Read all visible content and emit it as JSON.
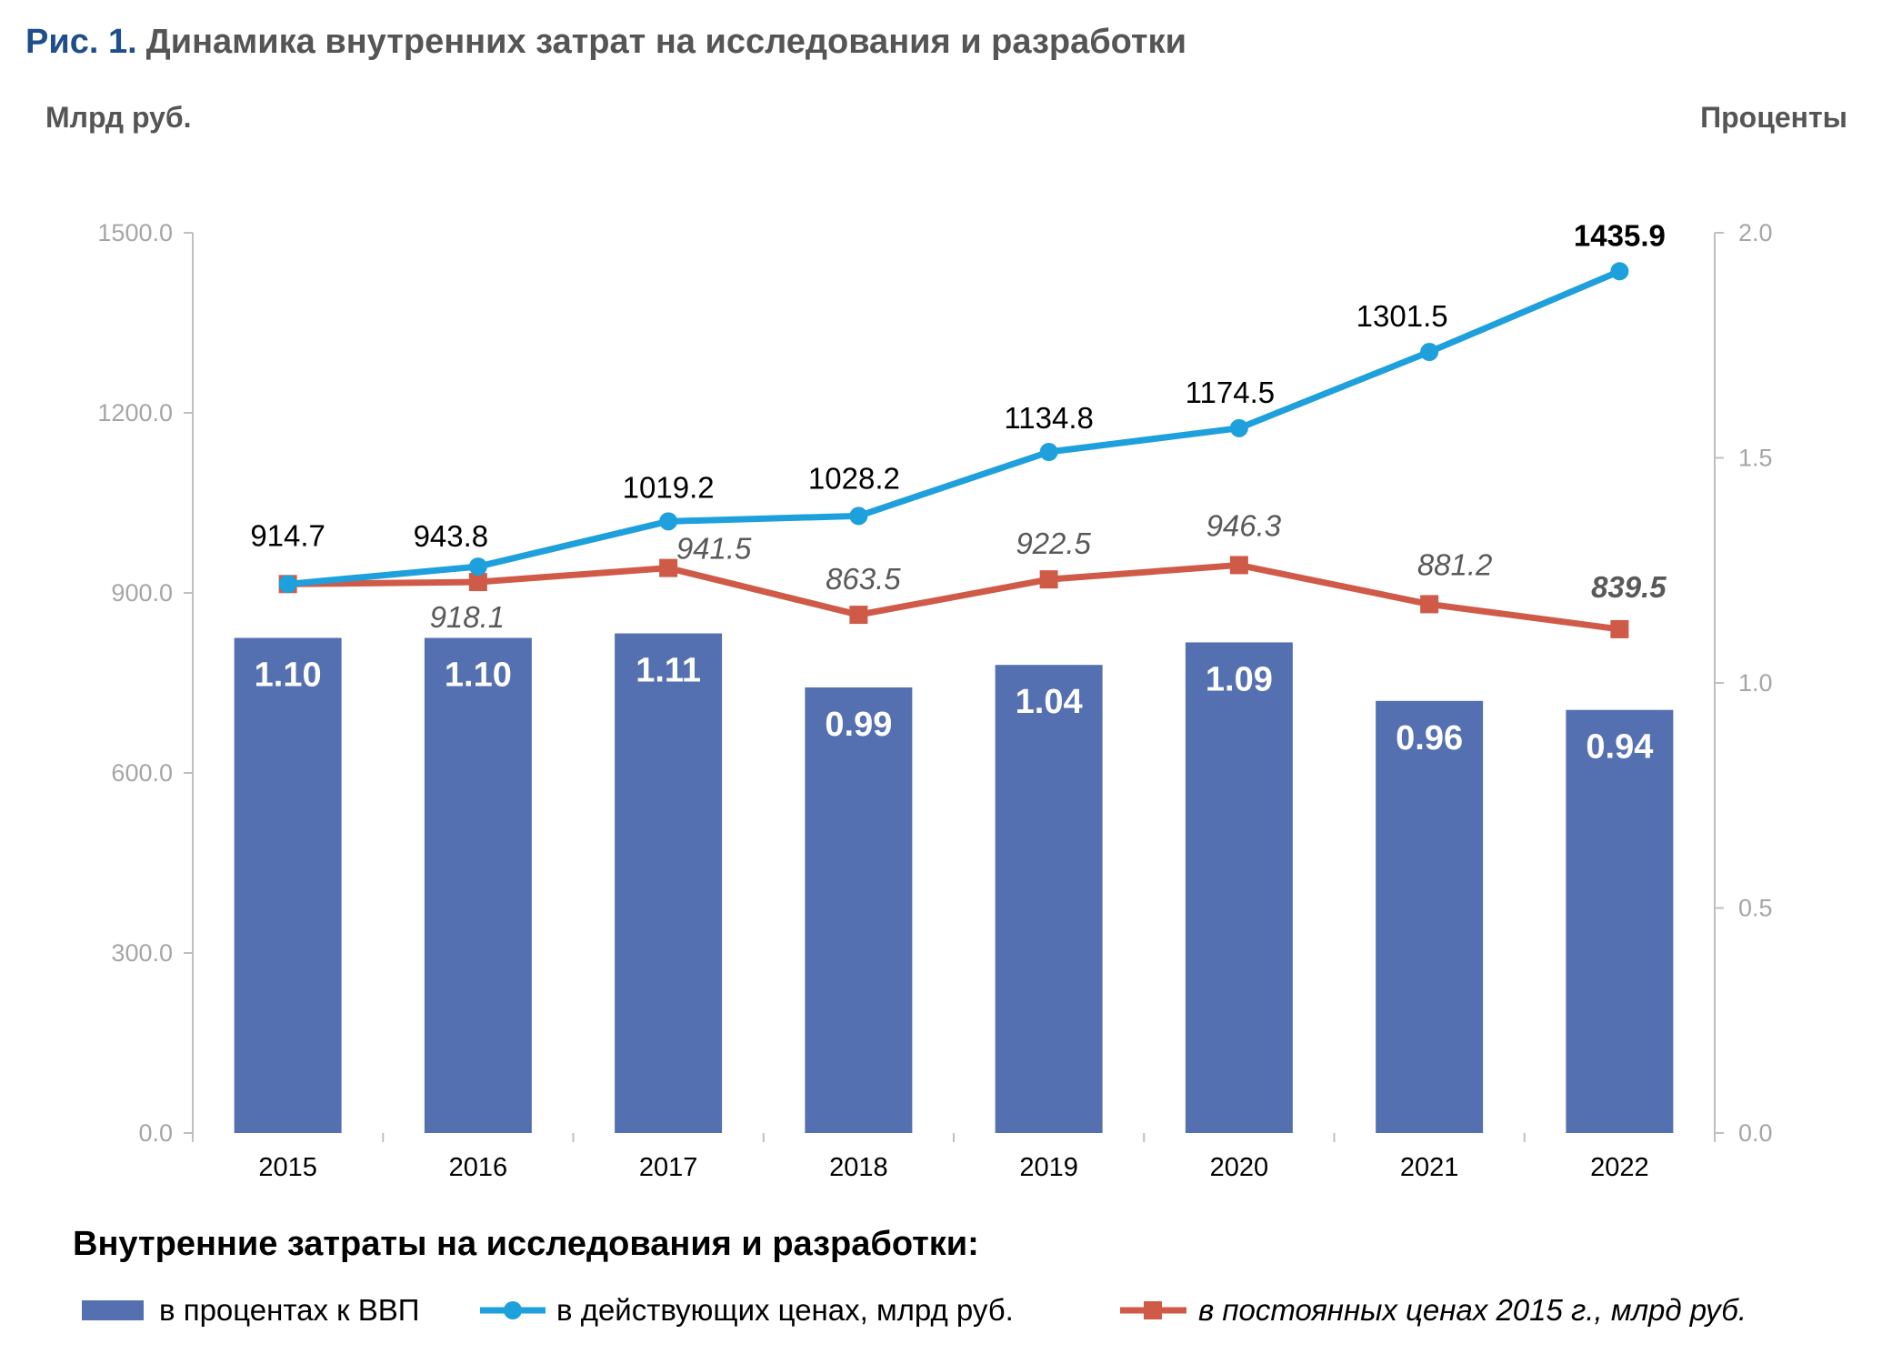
{
  "title": {
    "number": "Рис. 1.",
    "text": "Динамика внутренних затрат на исследования и разработки"
  },
  "chart_data": {
    "type": "bar+line",
    "categories": [
      "2015",
      "2016",
      "2017",
      "2018",
      "2019",
      "2020",
      "2021",
      "2022"
    ],
    "y_left": {
      "label": "Млрд руб.",
      "range": [
        0,
        1500
      ],
      "ticks": [
        "0.0",
        "300.0",
        "600.0",
        "900.0",
        "1200.0",
        "1500.0"
      ]
    },
    "y_right": {
      "label": "Проценты",
      "range": [
        0,
        2.0
      ],
      "ticks": [
        "0.0",
        "0.5",
        "1.0",
        "1.5",
        "2.0"
      ]
    },
    "grid": false,
    "legend_title": "Внутренние затраты на исследования и разработки:",
    "legend_position": "bottom",
    "series": [
      {
        "name": "в процентах к ВВП",
        "kind": "bar",
        "axis": "right",
        "color": "#5470b0",
        "values": [
          1.1,
          1.1,
          1.11,
          0.99,
          1.04,
          1.09,
          0.96,
          0.94
        ],
        "labels": [
          "1.10",
          "1.10",
          "1.11",
          "0.99",
          "1.04",
          "1.09",
          "0.96",
          "0.94"
        ]
      },
      {
        "name": "в действующих ценах, млрд руб.",
        "kind": "line",
        "marker": "circle",
        "axis": "left",
        "color": "#1ea0dc",
        "values": [
          914.7,
          943.8,
          1019.2,
          1028.2,
          1134.8,
          1174.5,
          1301.5,
          1435.9
        ],
        "labels": [
          "914.7",
          "943.8",
          "1019.2",
          "1028.2",
          "1134.8",
          "1174.5",
          "1301.5",
          "1435.9"
        ]
      },
      {
        "name": "в постоянных ценах 2015 г., млрд руб.",
        "kind": "line",
        "marker": "square",
        "axis": "left",
        "color": "#d05a48",
        "values": [
          914.7,
          918.1,
          941.5,
          863.5,
          922.5,
          946.3,
          881.2,
          839.5
        ],
        "labels": [
          null,
          "918.1",
          "941.5",
          "863.5",
          "922.5",
          "946.3",
          "881.2",
          "839.5"
        ]
      }
    ]
  }
}
